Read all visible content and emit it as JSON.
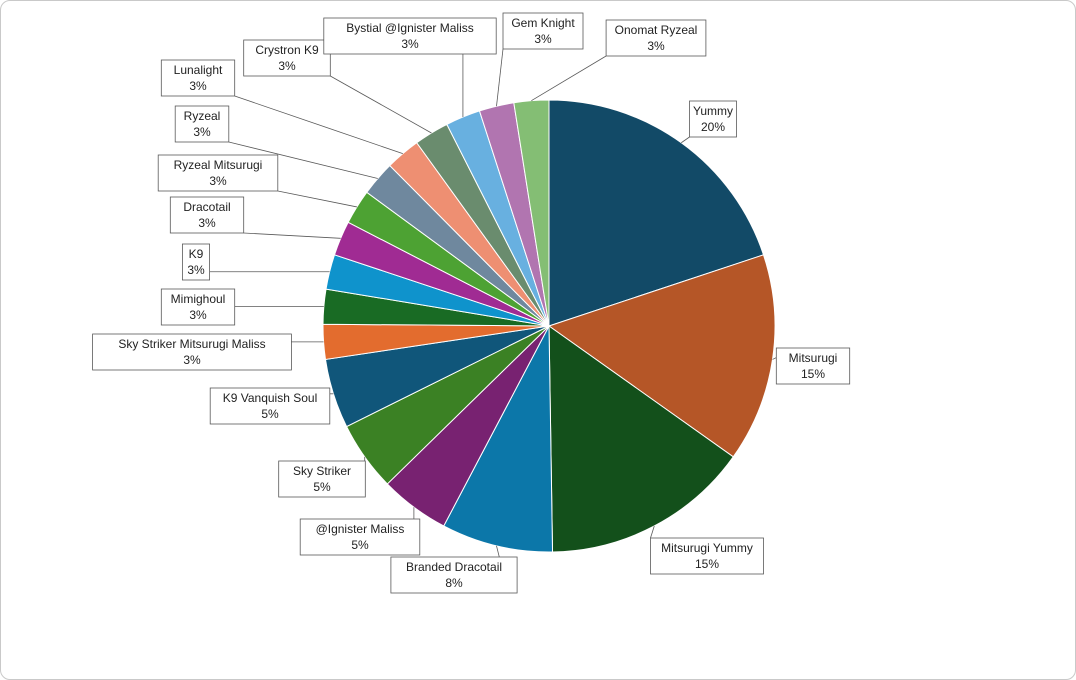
{
  "chart_data": {
    "type": "pie",
    "title": "",
    "slices": [
      {
        "label": "Yummy",
        "value": 20,
        "text": "20%",
        "color": "#124A67"
      },
      {
        "label": "Mitsurugi",
        "value": 15,
        "text": "15%",
        "color": "#B55627"
      },
      {
        "label": "Mitsurugi Yummy",
        "value": 15,
        "text": "15%",
        "color": "#13501B"
      },
      {
        "label": "Branded Dracotail",
        "value": 8,
        "text": "8%",
        "color": "#0C77A9"
      },
      {
        "label": "@Ignister Maliss",
        "value": 5,
        "text": "5%",
        "color": "#782271"
      },
      {
        "label": "Sky Striker",
        "value": 5,
        "text": "5%",
        "color": "#3B8124"
      },
      {
        "label": "K9 Vanquish Soul",
        "value": 5,
        "text": "5%",
        "color": "#10567A"
      },
      {
        "label": "Sky Striker Mitsurugi Maliss",
        "value": 2.5,
        "text": "3%",
        "color": "#E36C2E"
      },
      {
        "label": "Mimighoul",
        "value": 2.5,
        "text": "3%",
        "color": "#196B24"
      },
      {
        "label": "K9",
        "value": 2.5,
        "text": "3%",
        "color": "#0F93CC"
      },
      {
        "label": "Dracotail",
        "value": 2.5,
        "text": "3%",
        "color": "#A02B93"
      },
      {
        "label": "Ryzeal Mitsurugi",
        "value": 2.5,
        "text": "3%",
        "color": "#4DA233"
      },
      {
        "label": "Ryzeal",
        "value": 2.5,
        "text": "3%",
        "color": "#6F889E"
      },
      {
        "label": "Lunalight",
        "value": 2.5,
        "text": "3%",
        "color": "#EE8F72"
      },
      {
        "label": "Crystron K9",
        "value": 2.5,
        "text": "3%",
        "color": "#6A8C6E"
      },
      {
        "label": "Bystial @Ignister Maliss",
        "value": 2.5,
        "text": "3%",
        "color": "#68B0E0"
      },
      {
        "label": "Gem Knight",
        "value": 2.5,
        "text": "3%",
        "color": "#B175B0"
      },
      {
        "label": "Onomat Ryzeal",
        "value": 2.5,
        "text": "3%",
        "color": "#84BE74"
      }
    ]
  }
}
